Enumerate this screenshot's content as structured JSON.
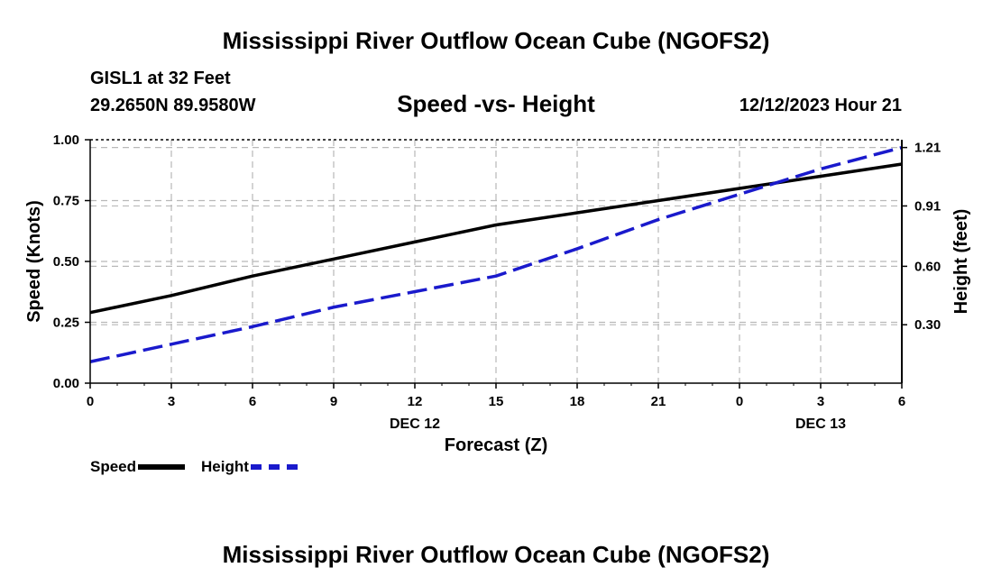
{
  "header": {
    "title": "Mississippi River Outflow Ocean Cube (NGOFS2)",
    "station": "GISL1 at 32 Feet",
    "coords": "29.2650N  89.9580W",
    "timestamp": "12/12/2023 Hour 21"
  },
  "footer": {
    "title": "Mississippi River Outflow Ocean Cube (NGOFS2)"
  },
  "colors": {
    "speed": "#000000",
    "height": "#1a1acc",
    "grid": "#b8b8b8"
  },
  "chart_data": {
    "type": "line",
    "title": "Speed -vs- Height",
    "xlabel": "Forecast (Z)",
    "ylabel": "Speed (Knots)",
    "y2label": "Height (feet)",
    "x": [
      0,
      3,
      6,
      9,
      12,
      15,
      18,
      21,
      24,
      27,
      30
    ],
    "xtick_labels": [
      "0",
      "3",
      "6",
      "9",
      "12",
      "15",
      "18",
      "21",
      "0",
      "3",
      "6"
    ],
    "date_labels": [
      {
        "x": 12,
        "label": "DEC 12"
      },
      {
        "x": 27,
        "label": "DEC 13"
      }
    ],
    "xlim": [
      0,
      30
    ],
    "ylim": [
      0,
      1.0
    ],
    "yticks": [
      0.0,
      0.25,
      0.5,
      0.75,
      1.0
    ],
    "ytick_labels": [
      "0.00",
      "0.25",
      "0.50",
      "0.75",
      "1.00"
    ],
    "y2lim": [
      0.0,
      1.25
    ],
    "y2ticks": [
      0.3,
      0.6,
      0.91,
      1.21
    ],
    "y2tick_labels": [
      "0.30",
      "0.60",
      "0.91",
      "1.21"
    ],
    "grid": true,
    "series": [
      {
        "name": "Speed",
        "axis": "left",
        "style": "solid",
        "x": [
          0,
          3,
          6,
          9,
          12,
          15,
          18,
          21,
          24,
          27,
          30
        ],
        "values": [
          0.29,
          0.36,
          0.44,
          0.51,
          0.58,
          0.65,
          0.7,
          0.75,
          0.8,
          0.85,
          0.9
        ]
      },
      {
        "name": "Height",
        "axis": "right",
        "style": "dashed",
        "x": [
          0,
          3,
          6,
          9,
          12,
          15,
          18,
          21,
          24,
          27,
          30
        ],
        "values": [
          0.11,
          0.2,
          0.29,
          0.39,
          0.47,
          0.55,
          0.69,
          0.84,
          0.97,
          1.1,
          1.21
        ]
      }
    ],
    "legend": [
      {
        "label": "Speed"
      },
      {
        "label": "Height"
      }
    ],
    "legend_position": "bottom-left"
  }
}
